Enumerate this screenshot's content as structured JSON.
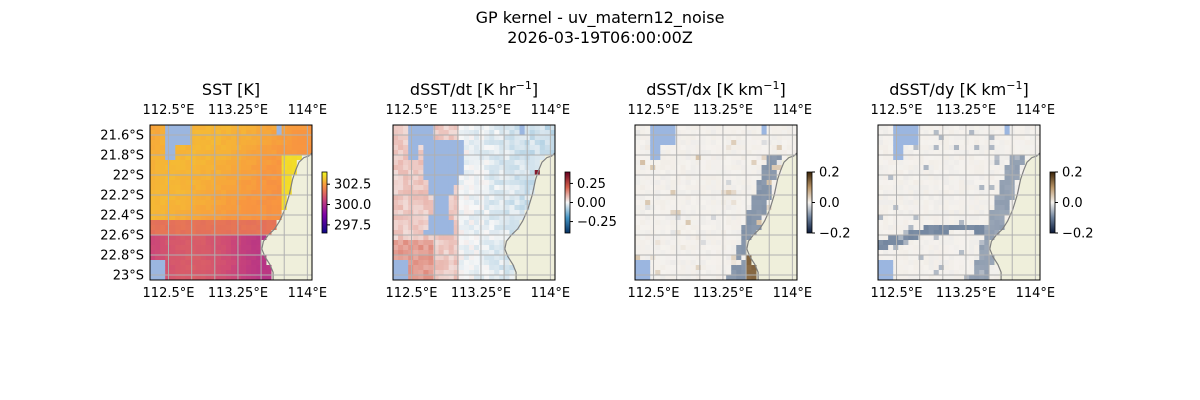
{
  "title": "GP kernel - uv_matern12_noise",
  "subtitle": "2026-03-19T06:00:00Z",
  "colors": {
    "land": "#efefdb",
    "coast": "#7f7f7f",
    "grid": "#b0b0b0",
    "ocean_mask": "#9bb6e0"
  },
  "chart_data": [
    {
      "type": "heatmap",
      "title": "SST [K]",
      "colormap": "plasma-like (dark purple → red → orange → yellow)",
      "colorbar": {
        "range": [
          296.5,
          304.0
        ],
        "ticks": [
          297.5,
          300.0,
          302.5
        ],
        "tick_labels": [
          "297.5",
          "300.0",
          "302.5"
        ]
      },
      "x_tick_labels_top": [
        "112.5°E",
        "113.25°E",
        "114°E"
      ],
      "x_tick_labels_bottom": [
        "112.5°E",
        "113.25°E",
        "114°E"
      ],
      "y_tick_labels": [
        "21.6°S",
        "21.8°S",
        "22°S",
        "22.2°S",
        "22.4°S",
        "22.6°S",
        "22.8°S",
        "23°S"
      ],
      "approx_field": "~302.5 K over most of the domain, cooler (~300.5 K) band toward the south; warmest (~303.5 K) near the coast",
      "grid": true
    },
    {
      "type": "heatmap",
      "title": "dSST/dt [K hr",
      "title_sup": "−1",
      "title_end": "]",
      "colormap": "diverging blue-white-red",
      "colorbar": {
        "range": [
          -0.4,
          0.4
        ],
        "ticks": [
          0.25,
          0.0,
          -0.25
        ],
        "tick_labels": [
          "0.25",
          "0.00",
          "−0.25"
        ]
      },
      "x_tick_labels_top": [
        "112.5°E",
        "113.25°E",
        "114°E"
      ],
      "x_tick_labels_bottom": [
        "112.5°E",
        "113.25°E",
        "114°E"
      ],
      "approx_field": "weak positive (~0.05) west of 113.3°E, weak negative (~−0.05) east; strong positive (~0.35) at the coast near 21.9°S",
      "grid": true
    },
    {
      "type": "heatmap",
      "title": "dSST/dx [K km",
      "title_sup": "−1",
      "title_end": "]",
      "colormap": "diverging dark-blue-white-brown",
      "colorbar": {
        "range": [
          -0.2,
          0.2
        ],
        "ticks": [
          0.2,
          0.0,
          -0.2
        ],
        "tick_labels": [
          "0.2",
          "0.0",
          "−0.2"
        ]
      },
      "x_tick_labels_top": [
        "112.5°E",
        "113.25°E",
        "114°E"
      ],
      "x_tick_labels_bottom": [
        "112.5°E",
        "113.25°E",
        "114°E"
      ],
      "approx_field": "near zero everywhere, small scattered nonzero values along the coastline",
      "grid": true
    },
    {
      "type": "heatmap",
      "title": "dSST/dy [K km",
      "title_sup": "−1",
      "title_end": "]",
      "colormap": "diverging dark-blue-white-brown",
      "colorbar": {
        "range": [
          -0.2,
          0.2
        ],
        "ticks": [
          0.2,
          0.0,
          -0.2
        ],
        "tick_labels": [
          "0.2",
          "0.0",
          "−0.2"
        ]
      },
      "x_tick_labels_top": [
        "112.5°E",
        "113.25°E",
        "114°E"
      ],
      "x_tick_labels_bottom": [
        "112.5°E",
        "113.25°E",
        "114°E"
      ],
      "approx_field": "near zero, weak negative streak along ~22.8°S and along the coast",
      "grid": true
    }
  ]
}
